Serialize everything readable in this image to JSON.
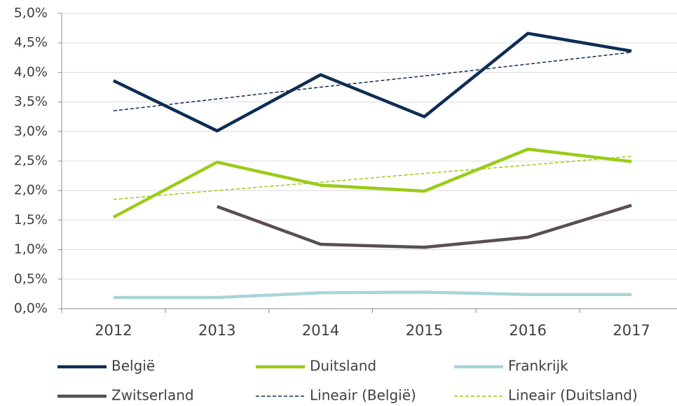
{
  "chart_data": {
    "type": "line",
    "categories": [
      "2012",
      "2013",
      "2014",
      "2015",
      "2016",
      "2017"
    ],
    "series": [
      {
        "name": "België",
        "color": "#0e2d52",
        "line_style": "solid",
        "values": [
          3.86,
          3.01,
          3.96,
          3.25,
          4.66,
          4.36
        ]
      },
      {
        "name": "Duitsland",
        "color": "#99cc17",
        "line_style": "solid",
        "values": [
          1.55,
          2.48,
          2.09,
          1.99,
          2.7,
          2.49
        ]
      },
      {
        "name": "Frankrijk",
        "color": "#a8d4db",
        "line_style": "solid",
        "values": [
          0.19,
          0.19,
          0.27,
          0.28,
          0.24,
          0.24
        ]
      },
      {
        "name": "Zwitserland",
        "color": "#5a4f4f",
        "line_style": "solid",
        "values": [
          null,
          1.73,
          1.09,
          1.04,
          1.21,
          1.75
        ]
      },
      {
        "name": "Lineair (België)",
        "color": "#0e2d52",
        "line_style": "dashed",
        "values": [
          3.35,
          3.55,
          3.75,
          3.94,
          4.14,
          4.34
        ]
      },
      {
        "name": "Lineair (Duitsland)",
        "color": "#99cc17",
        "line_style": "dashed",
        "values": [
          1.85,
          2.0,
          2.14,
          2.29,
          2.43,
          2.58
        ]
      }
    ],
    "ylim": [
      0,
      5
    ],
    "yticks": [
      {
        "value": 0,
        "label": "0,0%"
      },
      {
        "value": 0.5,
        "label": "0,5%"
      },
      {
        "value": 1,
        "label": "1,0%"
      },
      {
        "value": 1.5,
        "label": "1,5%"
      },
      {
        "value": 2,
        "label": "2,0%"
      },
      {
        "value": 2.5,
        "label": "2,5%"
      },
      {
        "value": 3,
        "label": "3,0%"
      },
      {
        "value": 3.5,
        "label": "3,5%"
      },
      {
        "value": 4,
        "label": "4,0%"
      },
      {
        "value": 4.5,
        "label": "4,5%"
      },
      {
        "value": 5,
        "label": "5,0%"
      }
    ],
    "grid": true,
    "legend": "bottom"
  }
}
